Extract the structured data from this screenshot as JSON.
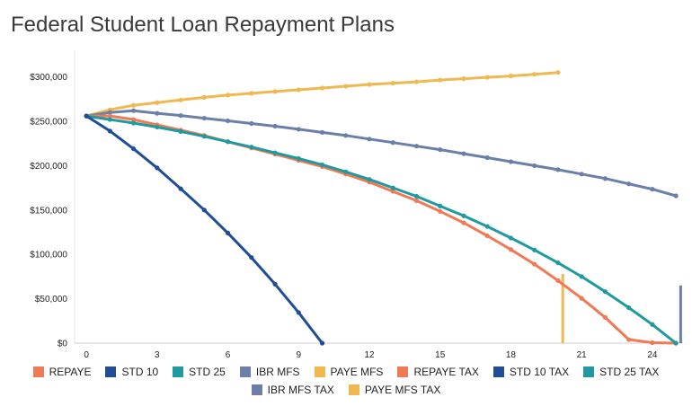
{
  "title": "Federal Student Loan Repayment Plans",
  "chart_data": {
    "type": "line",
    "title": "Federal Student Loan Repayment Plans",
    "xlabel": "",
    "ylabel": "",
    "xlim": [
      -0.5,
      25.3
    ],
    "ylim": [
      0,
      330000
    ],
    "x_ticks": [
      0,
      3,
      6,
      9,
      12,
      15,
      18,
      21,
      24
    ],
    "y_ticks": [
      0,
      50000,
      100000,
      150000,
      200000,
      250000,
      300000
    ],
    "y_tick_labels": [
      "$0",
      "$50,000",
      "$100,000",
      "$150,000",
      "$200,000",
      "$250,000",
      "$300,000"
    ],
    "grid": false,
    "legend_position": "bottom",
    "legend": [
      {
        "name": "REPAYE",
        "color": "#f07a55"
      },
      {
        "name": "STD 10",
        "color": "#1f4e96"
      },
      {
        "name": "STD 25",
        "color": "#1f9aa0"
      },
      {
        "name": "IBR MFS",
        "color": "#6b7fa8"
      },
      {
        "name": "PAYE MFS",
        "color": "#f0b850"
      },
      {
        "name": "REPAYE TAX",
        "color": "#f07a55"
      },
      {
        "name": "STD 10 TAX",
        "color": "#1f4e96"
      },
      {
        "name": "STD 25 TAX",
        "color": "#1f9aa0"
      },
      {
        "name": "IBR MFS TAX",
        "color": "#6b7fa8"
      },
      {
        "name": "PAYE MFS TAX",
        "color": "#f0b850"
      }
    ],
    "series": [
      {
        "name": "PAYE MFS",
        "color": "#f0b850",
        "x": [
          0,
          1,
          2,
          3,
          4,
          5,
          6,
          7,
          8,
          9,
          10,
          11,
          12,
          13,
          14,
          15,
          16,
          17,
          18,
          19,
          20
        ],
        "y": [
          256000,
          263000,
          268000,
          271000,
          274000,
          277000,
          279500,
          281500,
          283500,
          285500,
          287500,
          289500,
          291500,
          293000,
          294500,
          296500,
          298000,
          299500,
          301000,
          303000,
          305000
        ]
      },
      {
        "name": "IBR MFS",
        "color": "#6b7fa8",
        "x": [
          0,
          1,
          2,
          3,
          4,
          5,
          6,
          7,
          8,
          9,
          10,
          11,
          12,
          13,
          14,
          15,
          16,
          17,
          18,
          19,
          20,
          21,
          22,
          23,
          24,
          25
        ],
        "y": [
          256000,
          260000,
          262000,
          259000,
          256500,
          253500,
          250500,
          247500,
          244500,
          241000,
          237500,
          234000,
          230000,
          226000,
          222000,
          218000,
          213500,
          209000,
          204500,
          200000,
          195500,
          190500,
          185500,
          179500,
          173500,
          166000
        ]
      },
      {
        "name": "REPAYE",
        "color": "#f07a55",
        "x": [
          0,
          1,
          2,
          3,
          4,
          5,
          6,
          7,
          8,
          9,
          10,
          11,
          12,
          13,
          14,
          15,
          16,
          17,
          18,
          19,
          20,
          21,
          22,
          23,
          24,
          25
        ],
        "y": [
          256000,
          256000,
          252000,
          246000,
          240000,
          234000,
          227000,
          220000,
          213000,
          206000,
          199000,
          190500,
          181500,
          171000,
          160500,
          148500,
          135500,
          121000,
          105500,
          89000,
          70500,
          50500,
          29000,
          4000,
          500,
          0
        ]
      },
      {
        "name": "STD 25",
        "color": "#1f9aa0",
        "x": [
          0,
          1,
          2,
          3,
          4,
          5,
          6,
          7,
          8,
          9,
          10,
          11,
          12,
          13,
          14,
          15,
          16,
          17,
          18,
          19,
          20,
          21,
          22,
          23,
          24,
          25
        ],
        "y": [
          256000,
          252000,
          248000,
          243500,
          238500,
          233000,
          227000,
          221000,
          214500,
          208000,
          201000,
          193000,
          184500,
          175000,
          165500,
          154500,
          143500,
          131500,
          118500,
          105000,
          90500,
          75000,
          58000,
          40000,
          21000,
          0
        ]
      },
      {
        "name": "STD 10",
        "color": "#1f4e96",
        "x": [
          0,
          1,
          2,
          3,
          4,
          5,
          6,
          7,
          8,
          9,
          10
        ],
        "y": [
          256000,
          239000,
          219000,
          197500,
          174000,
          150000,
          124000,
          96500,
          66500,
          34500,
          0
        ]
      },
      {
        "name": "PAYE MFS TAX",
        "color": "#f0b850",
        "type": "bar",
        "x": [
          20.2
        ],
        "y": [
          78000
        ]
      },
      {
        "name": "IBR MFS TAX",
        "color": "#6b7fa8",
        "type": "bar",
        "x": [
          25.2
        ],
        "y": [
          65000
        ]
      }
    ]
  }
}
